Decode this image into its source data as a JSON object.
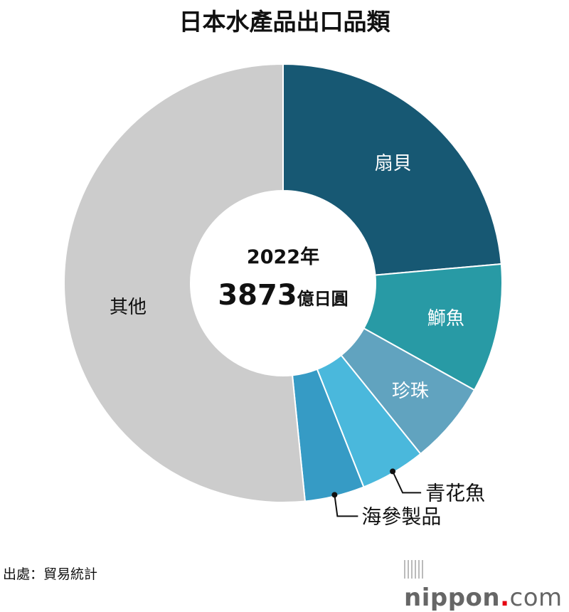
{
  "chart_data": {
    "type": "pie",
    "title": "日本水產品出口品類",
    "center_label": {
      "year": "2022年",
      "total_number": "3873",
      "total_unit": "億日圓"
    },
    "unit": "%",
    "slices": [
      {
        "label": "扇貝",
        "value": 23.6,
        "color": "#175873"
      },
      {
        "label": "鰤魚",
        "value": 9.5,
        "color": "#289aa5"
      },
      {
        "label": "珍珠",
        "value": 6.1,
        "color": "#61a3bf"
      },
      {
        "label": "青花魚",
        "value": 4.8,
        "color": "#4ab8dc"
      },
      {
        "label": "海參製品",
        "value": 4.4,
        "color": "#369bc5"
      },
      {
        "label": "其他",
        "value": 51.6,
        "color": "#cccccc"
      }
    ],
    "donut": true
  },
  "source": "出處：貿易統計",
  "logo": {
    "name": "nippon",
    "dot": ".",
    "tld": "com"
  }
}
